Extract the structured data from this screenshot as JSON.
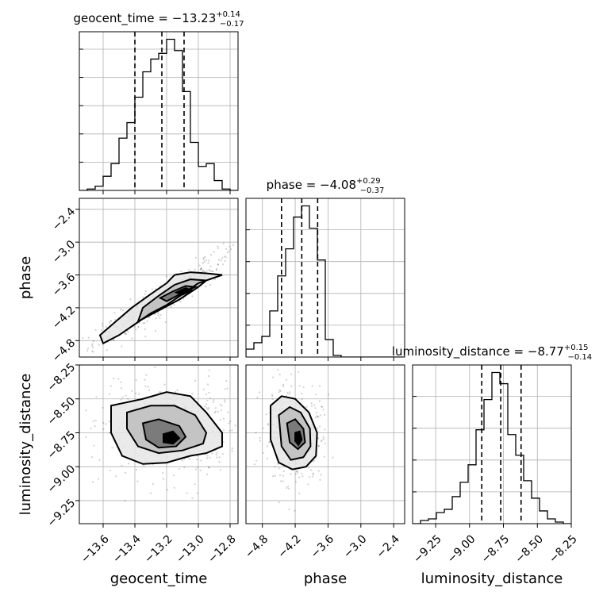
{
  "chart_data": {
    "type": "corner",
    "parameters": [
      "geocent_time",
      "phase",
      "luminosity_distance"
    ],
    "ranges": {
      "geocent_time": [
        -13.75,
        -12.75
      ],
      "phase": [
        -5.1,
        -2.2
      ],
      "luminosity_distance": [
        -9.42,
        -8.25
      ]
    },
    "ticks": {
      "geocent_time": [
        -13.6,
        -13.4,
        -13.2,
        -13.0,
        -12.8
      ],
      "phase": [
        -4.8,
        -4.2,
        -3.6,
        -3.0,
        -2.4
      ],
      "luminosity_distance": [
        -9.25,
        -9.0,
        -8.75,
        -8.5,
        -8.25
      ]
    },
    "tick_labels": {
      "geocent_time": [
        "−13.6",
        "−13.4",
        "−13.2",
        "−13.0",
        "−12.8"
      ],
      "phase": [
        "−4.8",
        "−4.2",
        "−3.6",
        "−3.0",
        "−2.4"
      ],
      "luminosity_distance": [
        "−9.25",
        "−9.00",
        "−8.75",
        "−8.50",
        "−8.25"
      ]
    },
    "titles": [
      {
        "param": "geocent_time",
        "text": "geocent_time = −13.23",
        "plus": "+0.14",
        "minus": "−0.17",
        "median": -13.23,
        "err_plus": 0.14,
        "err_minus": 0.17
      },
      {
        "param": "phase",
        "text": "phase = −4.08",
        "plus": "+0.29",
        "minus": "−0.37",
        "median": -4.08,
        "err_plus": 0.29,
        "err_minus": 0.37
      },
      {
        "param": "luminosity_distance",
        "text": "luminosity_distance = −8.77",
        "plus": "+0.15",
        "minus": "−0.14",
        "median": -8.77,
        "err_plus": 0.15,
        "err_minus": 0.14
      }
    ],
    "quantile_lines": {
      "geocent_time": [
        -13.4,
        -13.23,
        -13.09
      ],
      "phase": [
        -4.45,
        -4.08,
        -3.79
      ],
      "luminosity_distance": [
        -8.91,
        -8.77,
        -8.62
      ]
    },
    "histograms": {
      "geocent_time": {
        "bin_edges": [
          -13.75,
          -13.7,
          -13.65,
          -13.6,
          -13.55,
          -13.5,
          -13.45,
          -13.4,
          -13.35,
          -13.3,
          -13.25,
          -13.2,
          -13.15,
          -13.1,
          -13.05,
          -13.0,
          -12.95,
          -12.9,
          -12.85,
          -12.8,
          -12.75
        ],
        "counts": [
          0,
          1,
          3,
          10,
          19,
          37,
          48,
          66,
          84,
          93,
          97,
          107,
          99,
          70,
          34,
          17,
          19,
          7,
          1,
          0
        ]
      },
      "phase": {
        "bin_edges": [
          -5.1,
          -4.955,
          -4.81,
          -4.665,
          -4.52,
          -4.375,
          -4.23,
          -4.085,
          -3.94,
          -3.795,
          -3.65,
          -3.505,
          -3.36,
          -3.215,
          -3.07,
          -2.925,
          -2.78,
          -2.635,
          -2.49,
          -2.345,
          -2.2
        ],
        "counts": [
          5,
          9,
          13,
          29,
          51,
          68,
          88,
          95,
          81,
          61,
          11,
          1,
          0,
          0,
          0,
          0,
          0,
          0,
          0,
          0
        ]
      },
      "luminosity_distance": {
        "bin_edges": [
          -9.42,
          -9.3615,
          -9.303,
          -9.2445,
          -9.186,
          -9.1275,
          -9.069,
          -9.0105,
          -8.952,
          -8.8935,
          -8.835,
          -8.7765,
          -8.718,
          -8.6595,
          -8.601,
          -8.5425,
          -8.484,
          -8.4255,
          -8.367,
          -8.3085,
          -8.25
        ],
        "counts": [
          0,
          2,
          3,
          7,
          9,
          17,
          26,
          37,
          59,
          78,
          95,
          88,
          56,
          43,
          27,
          16,
          8,
          3,
          1,
          0
        ]
      }
    },
    "density_2d": [
      {
        "x_param": "geocent_time",
        "y_param": "phase",
        "contours": [
          [
            [
              -13.6,
              -4.85
            ],
            [
              -13.5,
              -4.7
            ],
            [
              -13.4,
              -4.5
            ],
            [
              -13.3,
              -4.3
            ],
            [
              -13.2,
              -4.15
            ],
            [
              -13.1,
              -3.95
            ],
            [
              -13.0,
              -3.75
            ],
            [
              -12.9,
              -3.65
            ],
            [
              -12.85,
              -3.6
            ],
            [
              -12.95,
              -3.57
            ],
            [
              -13.05,
              -3.55
            ],
            [
              -13.15,
              -3.6
            ],
            [
              -13.2,
              -3.75
            ],
            [
              -13.3,
              -3.95
            ],
            [
              -13.42,
              -4.2
            ],
            [
              -13.52,
              -4.45
            ],
            [
              -13.62,
              -4.7
            ]
          ],
          [
            [
              -13.38,
              -4.45
            ],
            [
              -13.25,
              -4.25
            ],
            [
              -13.12,
              -4.05
            ],
            [
              -13.0,
              -3.82
            ],
            [
              -12.95,
              -3.7
            ],
            [
              -13.05,
              -3.68
            ],
            [
              -13.15,
              -3.78
            ],
            [
              -13.25,
              -3.98
            ],
            [
              -13.35,
              -4.2
            ]
          ],
          [
            [
              -13.2,
              -4.08
            ],
            [
              -13.1,
              -3.93
            ],
            [
              -13.02,
              -3.82
            ],
            [
              -13.08,
              -3.8
            ],
            [
              -13.16,
              -3.9
            ],
            [
              -13.24,
              -4.02
            ]
          ],
          [
            [
              -13.1,
              -3.96
            ],
            [
              -13.04,
              -3.88
            ],
            [
              -13.08,
              -3.84
            ],
            [
              -13.14,
              -3.92
            ]
          ]
        ]
      },
      {
        "x_param": "geocent_time",
        "y_param": "luminosity_distance",
        "contours": [
          [
            [
              -13.55,
              -8.55
            ],
            [
              -13.35,
              -8.5
            ],
            [
              -13.2,
              -8.45
            ],
            [
              -13.05,
              -8.48
            ],
            [
              -12.95,
              -8.6
            ],
            [
              -12.85,
              -8.75
            ],
            [
              -12.85,
              -8.85
            ],
            [
              -12.95,
              -8.9
            ],
            [
              -13.05,
              -8.92
            ],
            [
              -13.2,
              -8.97
            ],
            [
              -13.35,
              -8.98
            ],
            [
              -13.48,
              -8.92
            ],
            [
              -13.55,
              -8.75
            ]
          ],
          [
            [
              -13.45,
              -8.6
            ],
            [
              -13.3,
              -8.55
            ],
            [
              -13.15,
              -8.55
            ],
            [
              -13.02,
              -8.62
            ],
            [
              -12.95,
              -8.75
            ],
            [
              -12.97,
              -8.83
            ],
            [
              -13.1,
              -8.88
            ],
            [
              -13.25,
              -8.9
            ],
            [
              -13.38,
              -8.85
            ],
            [
              -13.45,
              -8.72
            ]
          ],
          [
            [
              -13.35,
              -8.68
            ],
            [
              -13.25,
              -8.65
            ],
            [
              -13.12,
              -8.7
            ],
            [
              -13.08,
              -8.78
            ],
            [
              -13.14,
              -8.85
            ],
            [
              -13.25,
              -8.86
            ],
            [
              -13.33,
              -8.8
            ]
          ],
          [
            [
              -13.22,
              -8.76
            ],
            [
              -13.16,
              -8.74
            ],
            [
              -13.12,
              -8.79
            ],
            [
              -13.16,
              -8.83
            ],
            [
              -13.22,
              -8.82
            ]
          ]
        ]
      },
      {
        "x_param": "phase",
        "y_param": "luminosity_distance",
        "contours": [
          [
            [
              -4.65,
              -8.55
            ],
            [
              -4.45,
              -8.48
            ],
            [
              -4.2,
              -8.5
            ],
            [
              -3.95,
              -8.6
            ],
            [
              -3.8,
              -8.75
            ],
            [
              -3.82,
              -8.92
            ],
            [
              -4.0,
              -9.0
            ],
            [
              -4.25,
              -9.02
            ],
            [
              -4.5,
              -8.97
            ],
            [
              -4.65,
              -8.8
            ]
          ],
          [
            [
              -4.5,
              -8.62
            ],
            [
              -4.3,
              -8.56
            ],
            [
              -4.1,
              -8.6
            ],
            [
              -3.93,
              -8.72
            ],
            [
              -3.92,
              -8.85
            ],
            [
              -4.05,
              -8.93
            ],
            [
              -4.28,
              -8.95
            ],
            [
              -4.45,
              -8.85
            ]
          ],
          [
            [
              -4.35,
              -8.68
            ],
            [
              -4.2,
              -8.65
            ],
            [
              -4.05,
              -8.72
            ],
            [
              -4.02,
              -8.82
            ],
            [
              -4.15,
              -8.87
            ],
            [
              -4.3,
              -8.82
            ]
          ],
          [
            [
              -4.2,
              -8.75
            ],
            [
              -4.12,
              -8.74
            ],
            [
              -4.08,
              -8.8
            ],
            [
              -4.14,
              -8.84
            ],
            [
              -4.2,
              -8.81
            ]
          ]
        ]
      }
    ]
  }
}
